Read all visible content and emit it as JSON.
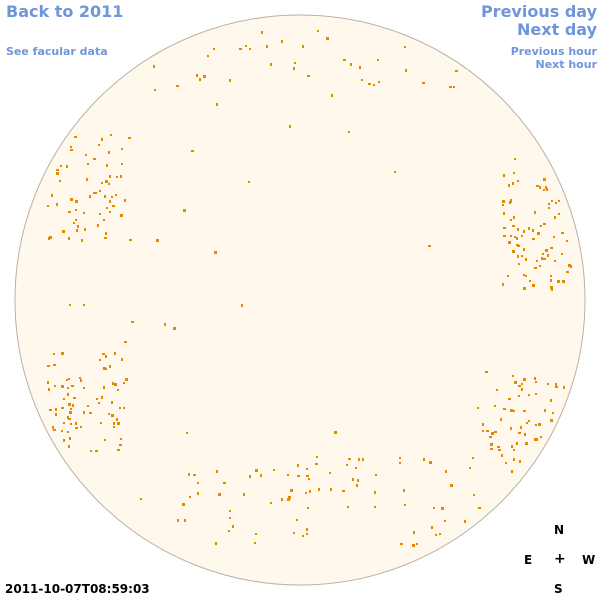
{
  "nav": {
    "back_label": "Back to 2011",
    "facular_label": "See facular data",
    "prev_day_label": "Previous day",
    "next_day_label": "Next day",
    "prev_hour_label": "Previous hour",
    "next_hour_label": "Next hour"
  },
  "timestamp": "2011-10-07T08:59:03",
  "compass": {
    "north": "N",
    "east": "E",
    "center": "+",
    "west": "W",
    "south": "S"
  },
  "colors": {
    "link": "#6f95da",
    "disk_fill": "#fff8ec",
    "disk_stroke": "#b9b2a4",
    "plage": "#e48a00"
  },
  "disk": {
    "plage_regions": [
      {
        "id": "left-upper",
        "seed": 11,
        "count": 70
      },
      {
        "id": "left-lower",
        "seed": 23,
        "count": 75
      },
      {
        "id": "right-upper",
        "seed": 37,
        "count": 95
      },
      {
        "id": "right-lower",
        "seed": 41,
        "count": 70
      },
      {
        "id": "bottom-center",
        "seed": 53,
        "count": 80
      },
      {
        "id": "top",
        "seed": 67,
        "count": 45
      },
      {
        "id": "scattered",
        "seed": 79,
        "count": 40
      }
    ]
  }
}
